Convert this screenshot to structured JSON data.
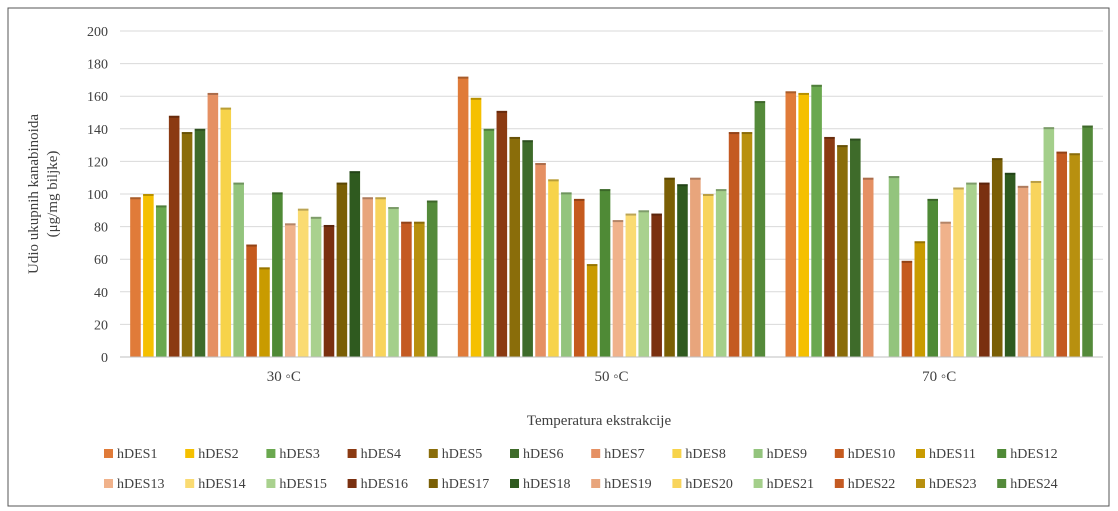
{
  "chart_data": {
    "type": "bar",
    "ylabel_lines": [
      "Udio ukupnih kanabinoida",
      "(μg/mg biljke)"
    ],
    "xlabel": "Temperatura ekstrakcije",
    "categories": [
      "30 ◦C",
      "50 ◦C",
      "70 ◦C"
    ],
    "ylim": [
      0,
      200
    ],
    "yticks": [
      0,
      20,
      40,
      60,
      80,
      100,
      120,
      140,
      160,
      180,
      200
    ],
    "grid": true,
    "legend_position": "bottom",
    "series": [
      {
        "name": "hDES1",
        "color": "#e07b39",
        "values": [
          98,
          172,
          163
        ]
      },
      {
        "name": "hDES2",
        "color": "#f5c000",
        "values": [
          100,
          159,
          162
        ]
      },
      {
        "name": "hDES3",
        "color": "#6aa84f",
        "values": [
          93,
          140,
          167
        ]
      },
      {
        "name": "hDES4",
        "color": "#8b3a12",
        "values": [
          148,
          151,
          135
        ]
      },
      {
        "name": "hDES5",
        "color": "#8a6d0a",
        "values": [
          138,
          135,
          130
        ]
      },
      {
        "name": "hDES6",
        "color": "#3e6b2a",
        "values": [
          140,
          133,
          134
        ]
      },
      {
        "name": "hDES7",
        "color": "#e59063",
        "values": [
          162,
          119,
          110
        ]
      },
      {
        "name": "hDES8",
        "color": "#f7d34a",
        "values": [
          153,
          109,
          0
        ]
      },
      {
        "name": "hDES9",
        "color": "#93c47d",
        "values": [
          107,
          101,
          111
        ]
      },
      {
        "name": "hDES10",
        "color": "#c55a1e",
        "values": [
          69,
          97,
          59
        ]
      },
      {
        "name": "hDES11",
        "color": "#c99b00",
        "values": [
          55,
          57,
          71
        ]
      },
      {
        "name": "hDES12",
        "color": "#4f8a36",
        "values": [
          101,
          103,
          97
        ]
      },
      {
        "name": "hDES13",
        "color": "#f0b28b",
        "values": [
          82,
          84,
          83
        ]
      },
      {
        "name": "hDES14",
        "color": "#fadb72",
        "values": [
          91,
          88,
          104
        ]
      },
      {
        "name": "hDES15",
        "color": "#a9d18e",
        "values": [
          86,
          90,
          107
        ]
      },
      {
        "name": "hDES16",
        "color": "#7a3010",
        "values": [
          81,
          88,
          107
        ]
      },
      {
        "name": "hDES17",
        "color": "#7a5f05",
        "values": [
          107,
          110,
          122
        ]
      },
      {
        "name": "hDES18",
        "color": "#2f5a1f",
        "values": [
          114,
          106,
          113
        ]
      },
      {
        "name": "hDES19",
        "color": "#e8a57c",
        "values": [
          98,
          110,
          105
        ]
      },
      {
        "name": "hDES20",
        "color": "#f8d45c",
        "values": [
          98,
          100,
          108
        ]
      },
      {
        "name": "hDES21",
        "color": "#a4cf8b",
        "values": [
          92,
          103,
          141
        ]
      },
      {
        "name": "hDES22",
        "color": "#c45a22",
        "values": [
          83,
          138,
          126
        ]
      },
      {
        "name": "hDES23",
        "color": "#b8900f",
        "values": [
          83,
          138,
          125
        ]
      },
      {
        "name": "hDES24",
        "color": "#548a3a",
        "values": [
          96,
          157,
          142
        ]
      }
    ]
  }
}
